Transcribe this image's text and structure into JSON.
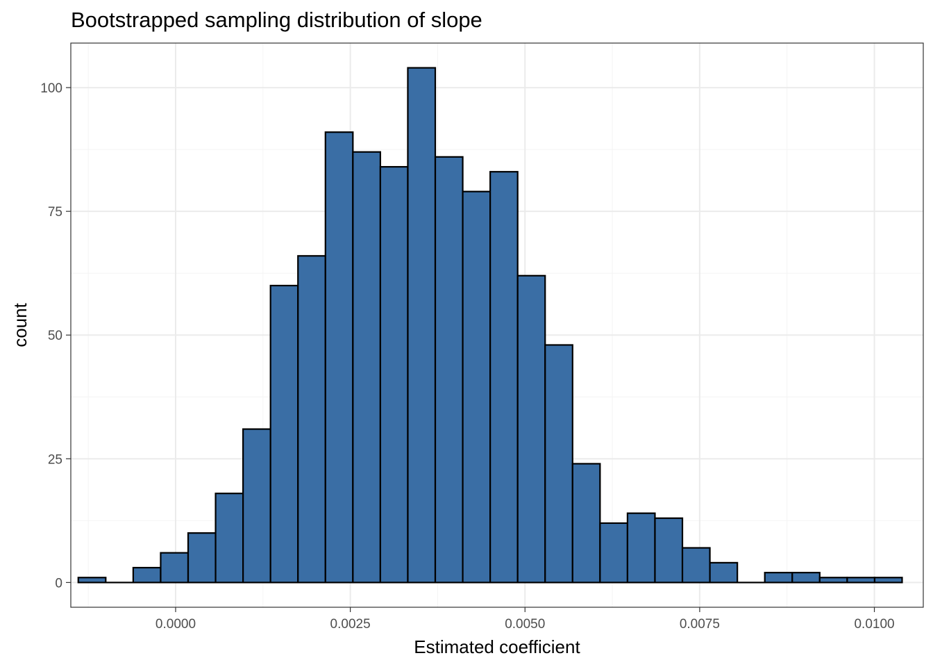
{
  "chart_data": {
    "type": "bar",
    "title": "Bootstrapped sampling distribution of slope",
    "xlabel": "Estimated coefficient",
    "ylabel": "count",
    "xlim": [
      -0.0015,
      0.0107
    ],
    "ylim": [
      -5,
      109
    ],
    "x_ticks": [
      0.0,
      0.0025,
      0.005,
      0.0075,
      0.01
    ],
    "x_tick_labels": [
      "0.0000",
      "0.0025",
      "0.0050",
      "0.0075",
      "0.0100"
    ],
    "y_ticks": [
      0,
      25,
      50,
      75,
      100
    ],
    "y_tick_labels": [
      "0",
      "25",
      "50",
      "75",
      "100"
    ],
    "grid": true,
    "bin_width": 0.000393,
    "bin_start": -0.001393,
    "counts": [
      1,
      0,
      3,
      6,
      10,
      18,
      31,
      60,
      66,
      91,
      87,
      84,
      104,
      86,
      79,
      83,
      62,
      48,
      24,
      12,
      14,
      13,
      7,
      4,
      0,
      2,
      2,
      1,
      1,
      1
    ],
    "bar_fill": "#3a6ea5",
    "bar_stroke": "#000000",
    "panel_border": "#333333",
    "grid_major": "#ebebeb",
    "grid_minor": "#f4f4f4"
  }
}
